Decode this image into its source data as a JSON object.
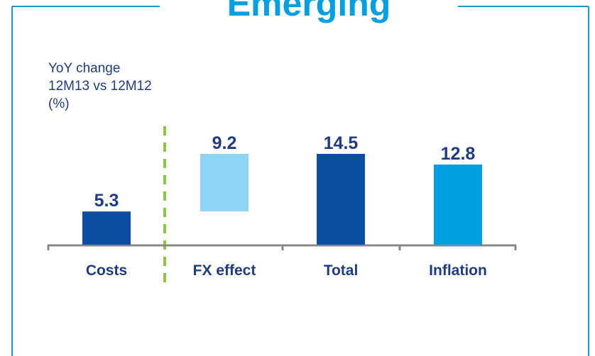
{
  "chart_data": {
    "type": "waterfall",
    "title": "Emerging",
    "ylabel": [
      "YoY change",
      "12M13 vs 12M12",
      "(%)"
    ],
    "categories": [
      "Costs",
      "FX effect",
      "Total",
      "Inflation"
    ],
    "values": [
      5.3,
      9.2,
      14.5,
      12.8
    ],
    "measure": [
      "relative",
      "relative",
      "total",
      "absolute"
    ],
    "colors": [
      "#0b4ea2",
      "#8fd4f4",
      "#0b4ea2",
      "#00a0e3"
    ]
  }
}
